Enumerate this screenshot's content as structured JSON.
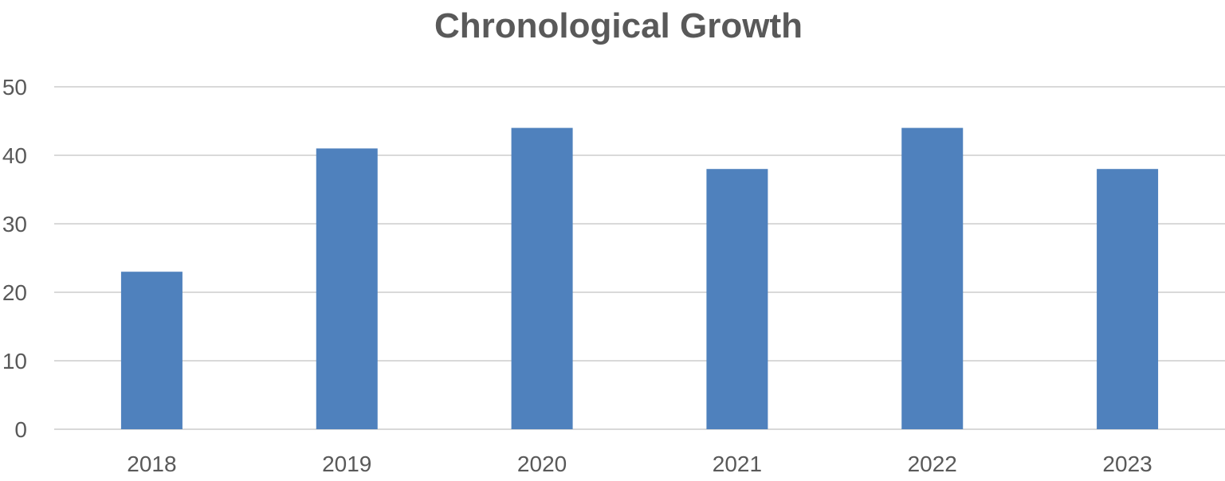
{
  "chart_data": {
    "type": "bar",
    "title": "Chronological Growth",
    "xlabel": "",
    "ylabel": "",
    "categories": [
      "2018",
      "2019",
      "2020",
      "2021",
      "2022",
      "2023"
    ],
    "values": [
      23,
      41,
      44,
      38,
      44,
      38
    ],
    "ylim": [
      0,
      50
    ],
    "yticks": [
      0,
      10,
      20,
      30,
      40,
      50
    ],
    "grid": true,
    "legend": "none",
    "colors": {
      "bar": "#4f81bd",
      "grid": "#d9d9d9",
      "text": "#595959"
    }
  }
}
